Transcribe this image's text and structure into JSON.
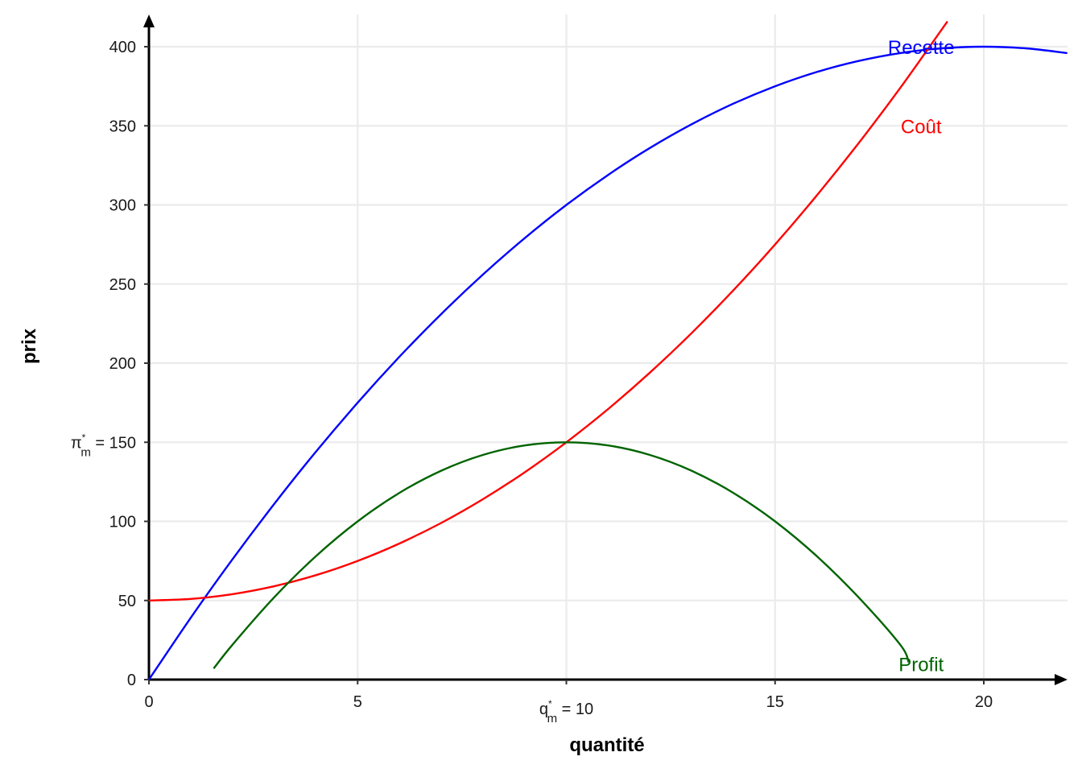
{
  "chart_data": {
    "type": "line",
    "xlabel": "quantité",
    "ylabel": "prix",
    "xlim": [
      0,
      22
    ],
    "ylim": [
      0,
      400
    ],
    "grid": true,
    "legend": "none",
    "x_ticks": [
      {
        "value": 0,
        "label": "0"
      },
      {
        "value": 5,
        "label": "5"
      },
      {
        "value": 10,
        "label": "q",
        "sub": "m",
        "sup": "*",
        "suffix": " = 10"
      },
      {
        "value": 15,
        "label": "15"
      },
      {
        "value": 20,
        "label": "20"
      }
    ],
    "y_ticks": [
      {
        "value": 0,
        "label": "0"
      },
      {
        "value": 50,
        "label": "50"
      },
      {
        "value": 100,
        "label": "100"
      },
      {
        "value": 150,
        "label": "π",
        "sub": "m",
        "sup": "*",
        "suffix": " = 150"
      },
      {
        "value": 200,
        "label": "200"
      },
      {
        "value": 250,
        "label": "250"
      },
      {
        "value": 300,
        "label": "300"
      },
      {
        "value": 350,
        "label": "350"
      },
      {
        "value": 400,
        "label": "400"
      }
    ],
    "series": [
      {
        "name": "Recette",
        "color": "#0000ff",
        "x": [
          0,
          1,
          2,
          3,
          4,
          5,
          6,
          7,
          8,
          9,
          10,
          11,
          12,
          13,
          14,
          15,
          16,
          17,
          18,
          19,
          20,
          21,
          22
        ],
        "y": [
          0,
          39,
          76,
          111,
          144,
          175,
          204,
          231,
          256,
          279,
          300,
          319,
          336,
          351,
          364,
          375,
          384,
          391,
          396,
          399,
          400,
          399,
          396
        ],
        "label_at": [
          18.5,
          400
        ]
      },
      {
        "name": "Coût",
        "color": "#ff0000",
        "x": [
          0,
          1,
          2,
          3,
          4,
          5,
          6,
          7,
          8,
          9,
          10,
          11,
          12,
          13,
          14,
          15,
          16,
          17,
          18,
          19.13
        ],
        "y": [
          50,
          51,
          54,
          59,
          66,
          75,
          86,
          99,
          114,
          131,
          150,
          171,
          194,
          219,
          246,
          275,
          306,
          339,
          374,
          416
        ],
        "label_at": [
          18.5,
          350
        ]
      },
      {
        "name": "Profit",
        "color": "#006400",
        "x": [
          1.55,
          2,
          3,
          4,
          5,
          6,
          7,
          8,
          9,
          10,
          11,
          12,
          13,
          14,
          15,
          16,
          17,
          18,
          18.2
        ],
        "y": [
          7,
          22,
          52,
          78,
          100,
          118,
          132,
          142,
          148,
          150,
          148,
          142,
          132,
          118,
          100,
          78,
          52,
          22,
          11
        ],
        "label_at": [
          18.5,
          10
        ]
      }
    ]
  }
}
